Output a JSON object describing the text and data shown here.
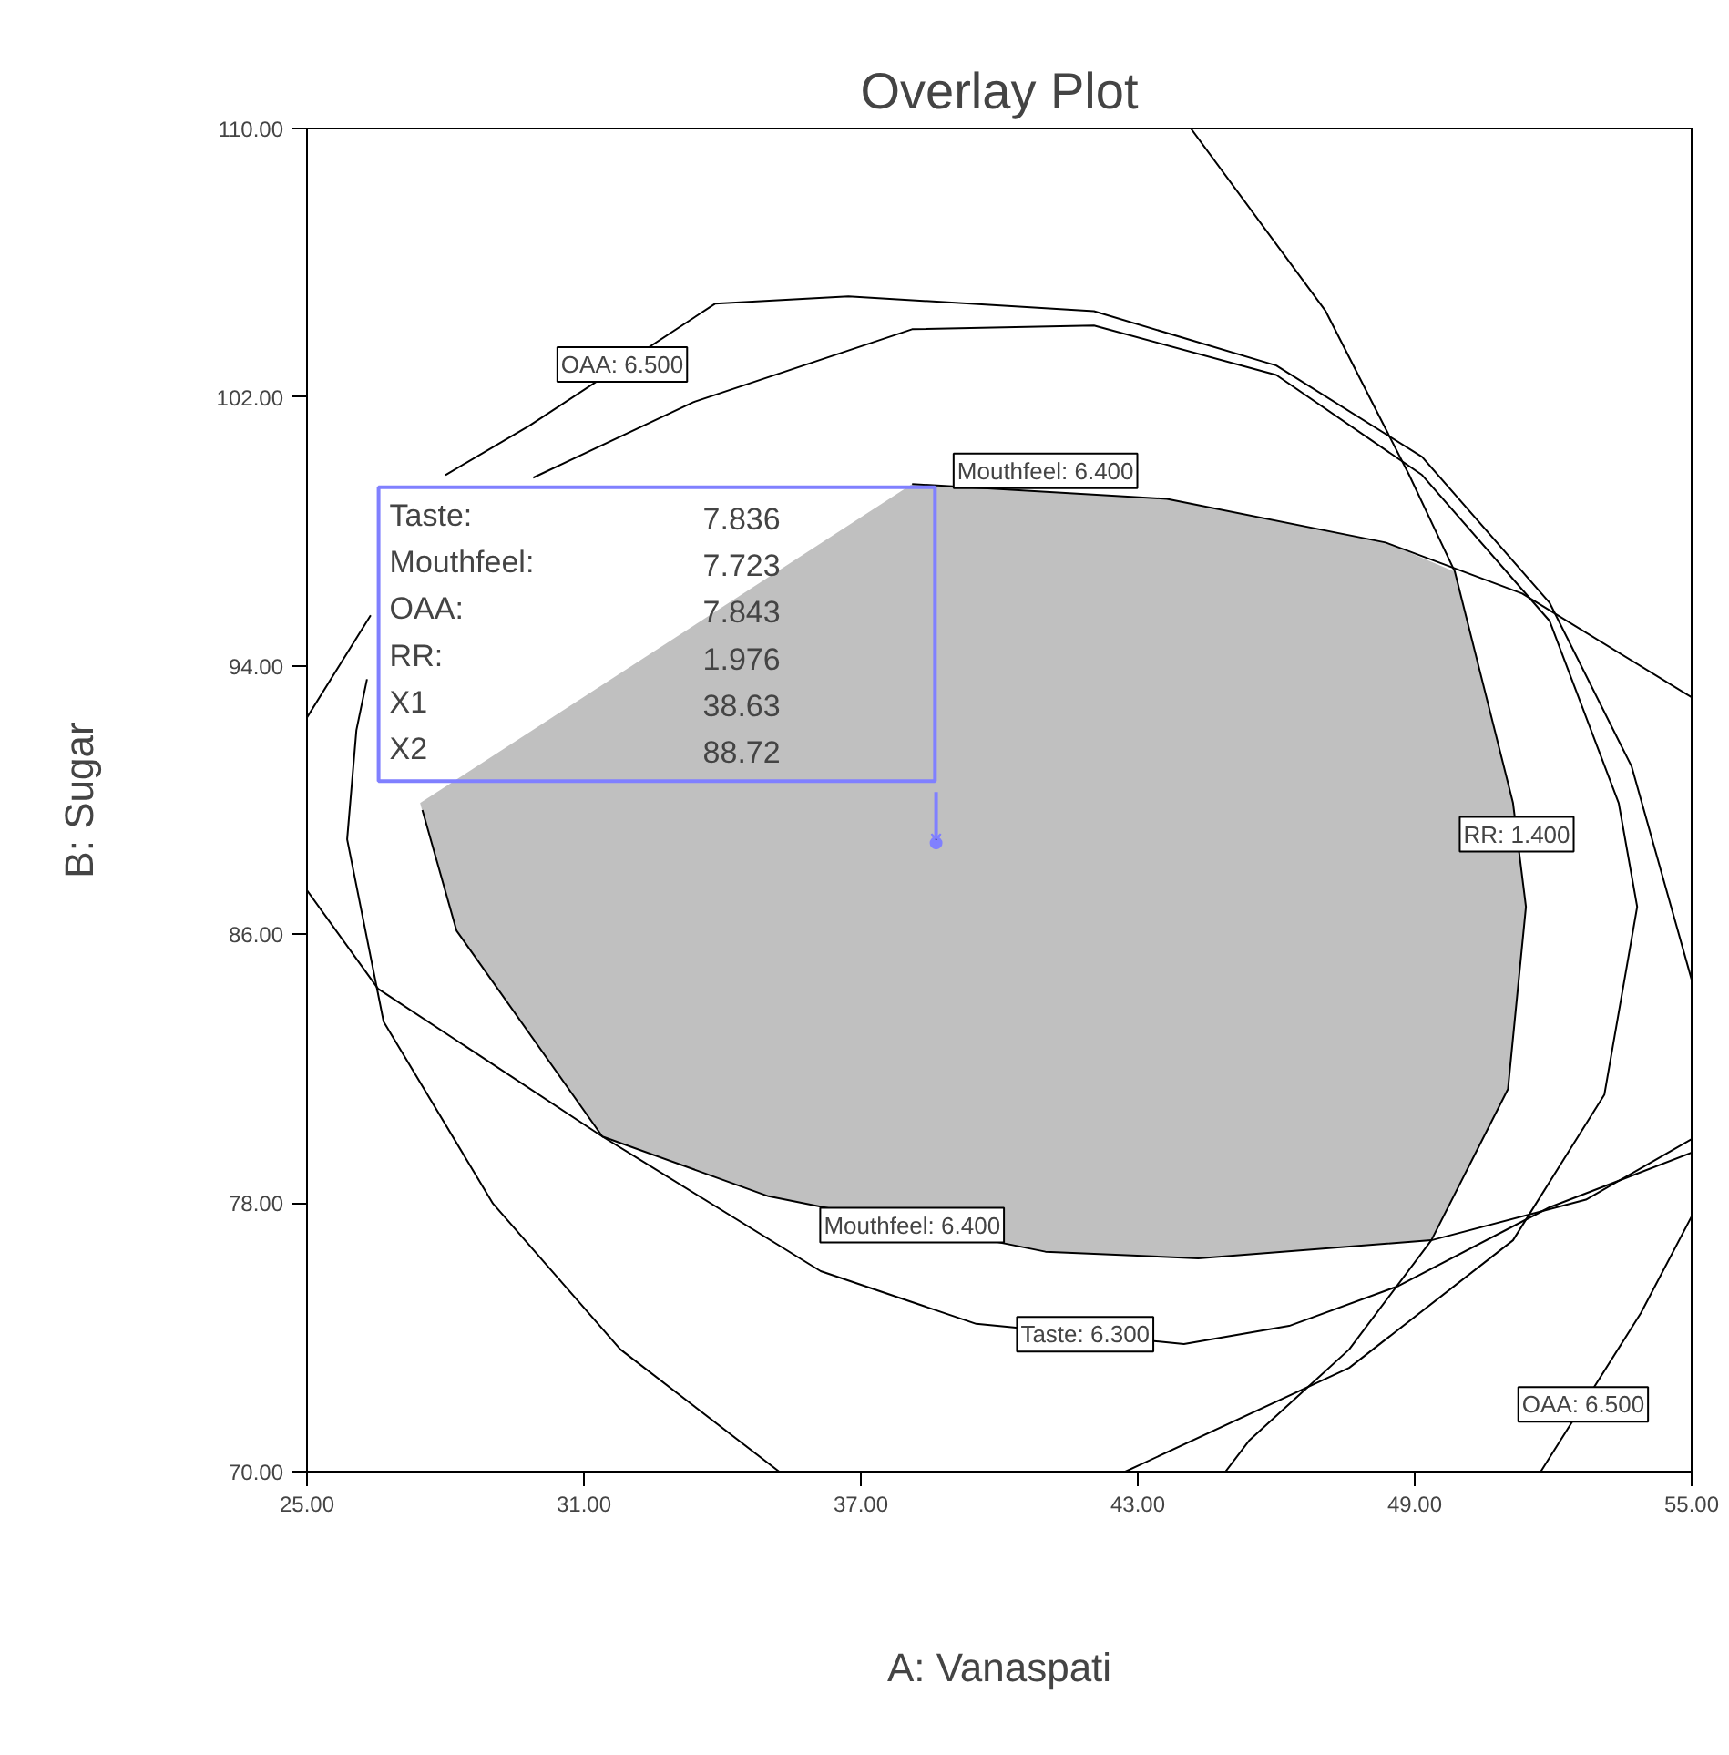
{
  "chart_data": {
    "type": "line",
    "title": "Overlay Plot",
    "xlabel": "A: Vanaspati",
    "ylabel": "B: Sugar",
    "xlim": [
      25,
      55
    ],
    "ylim": [
      70,
      110
    ],
    "xticks": [
      {
        "value": 25,
        "label": "25.00"
      },
      {
        "value": 31,
        "label": "31.00"
      },
      {
        "value": 37,
        "label": "37.00"
      },
      {
        "value": 43,
        "label": "43.00"
      },
      {
        "value": 49,
        "label": "49.00"
      },
      {
        "value": 55,
        "label": "55.00"
      }
    ],
    "yticks": [
      {
        "value": 70,
        "label": "70.00"
      },
      {
        "value": 78,
        "label": "78.00"
      },
      {
        "value": 86,
        "label": "86.00"
      },
      {
        "value": 94,
        "label": "94.00"
      },
      {
        "value": 102,
        "label": "102.00"
      },
      {
        "value": 110,
        "label": "110.00"
      }
    ],
    "line_style": "solid",
    "series": [
      {
        "type": "area",
        "color": "#c0c0c0",
        "x": [
          49.87,
          48.37,
          43.63,
          38.11,
          27.45,
          28.24,
          31.4,
          35.0,
          41.0,
          44.31,
          49.36,
          51.02,
          51.41,
          51.13
        ],
        "values": [
          96.8,
          97.67,
          98.97,
          99.41,
          89.91,
          86.11,
          79.98,
          78.2,
          76.55,
          76.35,
          76.89,
          81.39,
          86.82,
          89.91
        ]
      },
      {
        "color": "#000000",
        "x": [
          25,
          26.38,
          27.0,
          28.0,
          29.82,
          33.84,
          36.73,
          42.05,
          46.0,
          49.16,
          51.92,
          53.7,
          55
        ],
        "values": [
          92.46,
          95.5,
          null,
          99.68,
          101.15,
          104.78,
          105.0,
          104.56,
          102.94,
          100.22,
          95.88,
          91.0,
          84.65
        ]
      },
      {
        "color": "#000000",
        "x": [
          35.23,
          31.79,
          29.03,
          26.66,
          25.87,
          26.07,
          26.3,
          27.0,
          29.9,
          33.37,
          38.11,
          42.05,
          46.0,
          49.16,
          51.92,
          53.42,
          53.82,
          53.11,
          51.13,
          47.58,
          42.73
        ],
        "values": [
          70,
          73.64,
          77.98,
          83.4,
          88.83,
          92.08,
          93.6,
          null,
          99.6,
          101.85,
          104.02,
          104.13,
          102.66,
          99.68,
          95.34,
          89.91,
          86.82,
          81.23,
          76.89,
          73.09,
          70
        ]
      },
      {
        "color": "#000000",
        "x": [
          25,
          26.54,
          31.4,
          36.13,
          39.5,
          44.0,
          46.28,
          48.65,
          51.92,
          55
        ],
        "values": [
          87.31,
          84.38,
          79.98,
          75.97,
          74.4,
          73.8,
          74.34,
          75.53,
          77.87,
          79.5
        ]
      },
      {
        "color": "#000000",
        "x": [
          55,
          51.33,
          48.37,
          43.63,
          38.11
        ],
        "values": [
          93.06,
          96.15,
          97.67,
          98.97,
          99.41
        ]
      },
      {
        "color": "#000000",
        "x": [
          27.5,
          28.24,
          31.4,
          35.0,
          41.0,
          44.31,
          49.36,
          52.71,
          55
        ],
        "values": [
          89.7,
          86.11,
          79.98,
          78.2,
          76.55,
          76.35,
          76.89,
          78.1,
          79.9
        ]
      },
      {
        "color": "#000000",
        "x": [
          44.15,
          47.07,
          48.88,
          49.87,
          51.13,
          51.41,
          51.02,
          49.36,
          47.58,
          45.41,
          44.9
        ],
        "values": [
          110,
          104.56,
          99.68,
          96.8,
          89.91,
          86.82,
          81.39,
          76.89,
          73.64,
          70.92,
          70
        ]
      },
      {
        "color": "#000000",
        "x": [
          55,
          53.9,
          51.73
        ],
        "values": [
          77.6,
          74.72,
          70
        ]
      },
      {
        "type": "scatter",
        "marker": "circle",
        "color": "#8080ff",
        "x": [
          38.63
        ],
        "values": [
          88.72
        ]
      }
    ],
    "annotations": [
      {
        "text": "OAA: 6.500",
        "x": 31.83,
        "y": 102.97
      },
      {
        "text": "Mouthfeel: 6.400",
        "x": 41.0,
        "y": 99.18
      },
      {
        "text": "RR: 1.400",
        "x": 51.21,
        "y": 88.98
      },
      {
        "text": "Mouthfeel: 6.400",
        "x": 38.11,
        "y": 77.34
      },
      {
        "text": "Taste: 6.300",
        "x": 41.86,
        "y": 74.09
      },
      {
        "text": "OAA: 6.500",
        "x": 52.65,
        "y": 72.0
      },
      "Taste:",
      "7.836",
      "Mouthfeel:",
      "7.723",
      "OAA:",
      "7.843",
      "RR:",
      "1.976",
      "X1",
      "38.63",
      "X2",
      "88.72"
    ]
  }
}
